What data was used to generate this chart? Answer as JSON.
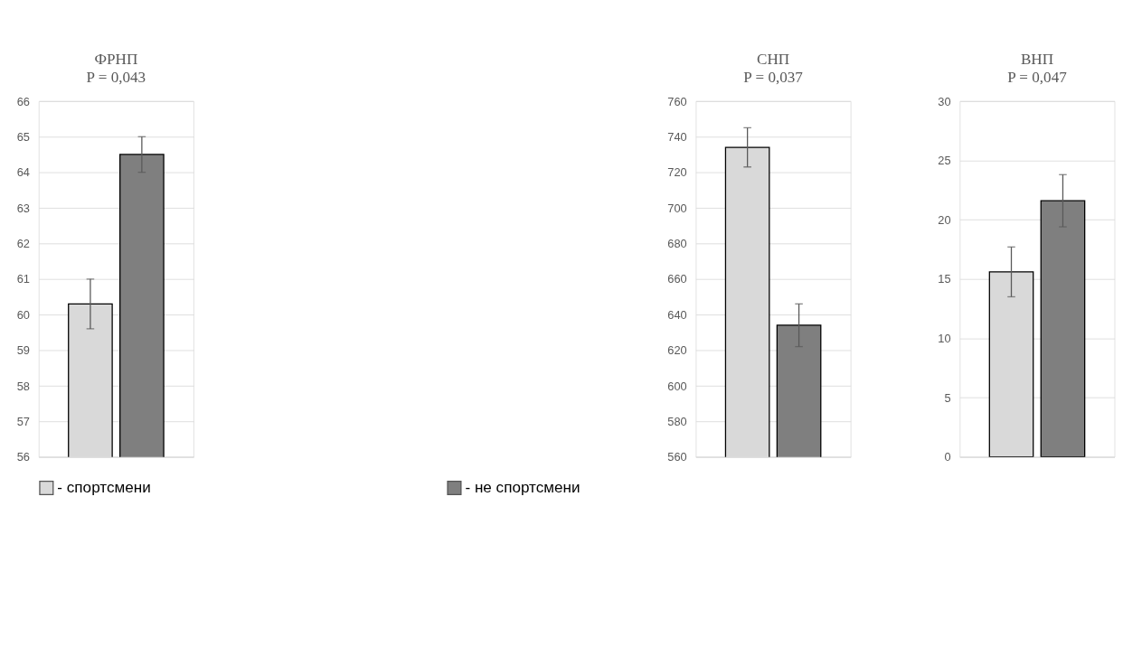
{
  "chart_data": [
    {
      "type": "bar",
      "title": "ФРНП",
      "annotations": [
        "P = 0,043"
      ],
      "categories": [
        null
      ],
      "series": [
        {
          "name": "- спортсмени",
          "color": "#d9d9d9",
          "values": [
            60.3
          ],
          "errors": [
            0.7
          ]
        },
        {
          "name": "- не спортсмени",
          "color": "#7f7f7f",
          "values": [
            64.5
          ],
          "errors": [
            0.5
          ]
        }
      ],
      "ylim": [
        56,
        66
      ],
      "yticks": [
        56,
        57,
        58,
        59,
        60,
        61,
        62,
        63,
        64,
        65,
        66
      ],
      "grid": "y",
      "legend": "bottom"
    },
    {
      "type": "bar",
      "title": "СНП",
      "annotations": [
        "P = 0,037"
      ],
      "categories": [
        null
      ],
      "series": [
        {
          "color": "#d9d9d9",
          "values": [
            734
          ],
          "errors": [
            11
          ]
        },
        {
          "color": "#7f7f7f",
          "values": [
            634
          ],
          "errors": [
            12
          ]
        }
      ],
      "ylim": [
        560,
        760
      ],
      "yticks": [
        560,
        580,
        600,
        620,
        640,
        660,
        680,
        700,
        720,
        740,
        760
      ],
      "grid": "y"
    },
    {
      "type": "bar",
      "title": "ВНП",
      "annotations": [
        "P = 0,047"
      ],
      "categories": [
        null
      ],
      "series": [
        {
          "color": "#d9d9d9",
          "values": [
            15.6
          ],
          "errors": [
            2.1
          ]
        },
        {
          "color": "#7f7f7f",
          "values": [
            21.6
          ],
          "errors": [
            2.2
          ]
        }
      ],
      "ylim": [
        0,
        30
      ],
      "yticks": [
        0,
        5,
        10,
        15,
        20,
        25,
        30
      ],
      "grid": "y"
    }
  ]
}
